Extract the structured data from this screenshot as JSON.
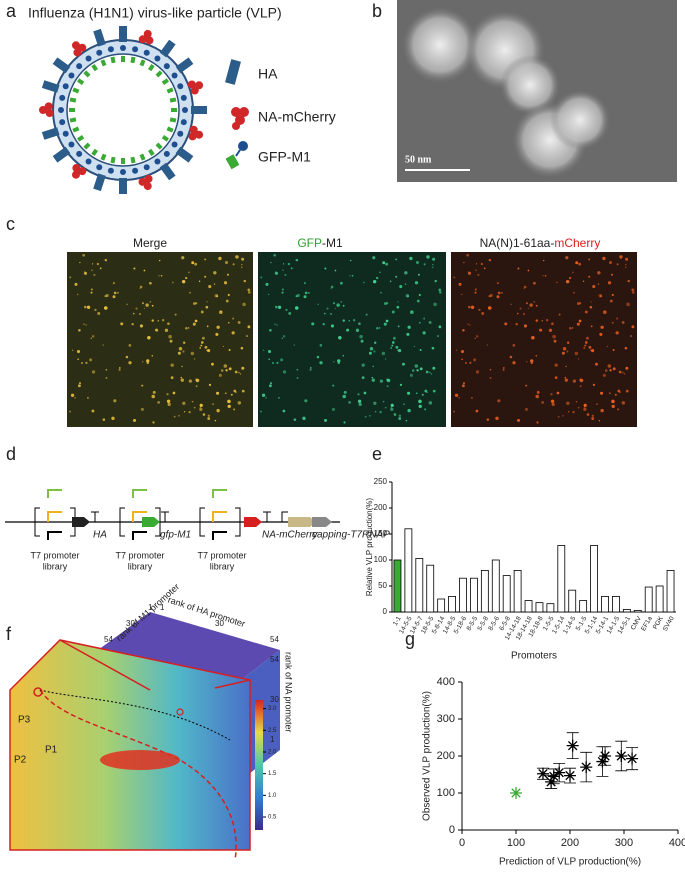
{
  "panel_labels": [
    "a",
    "b",
    "c",
    "d",
    "e",
    "f",
    "g"
  ],
  "a": {
    "title": "Influenza (H1N1) virus-like particle (VLP)",
    "legend": [
      "HA",
      "NA-mCherry",
      "GFP-M1"
    ]
  },
  "b": {
    "scale_bar": "50 nm"
  },
  "c": {
    "titles": [
      [
        "Merge"
      ],
      [
        "GFP",
        "-M1"
      ],
      [
        "NA(N)1-61aa-",
        "mCherry"
      ]
    ]
  },
  "d": {
    "genes": [
      "HA",
      "gfp-M1",
      "NA-mCherry",
      "capping-T7RNAP"
    ],
    "promoter_label": [
      "T7 promoter",
      "library"
    ]
  },
  "f": {
    "axes": [
      "rank of M1 promoter",
      "rank of HA promoter",
      "rank of NA promoter"
    ],
    "m1_ticks": [
      "54",
      "30",
      "1"
    ],
    "ha_ticks": [
      "1",
      "30",
      "54"
    ],
    "na_ticks": [
      "54",
      "30",
      "1"
    ],
    "colorbar_ticks": [
      0.5,
      {
        "value": 1,
        "label": "1.0"
      },
      1.5,
      {
        "value": 2,
        "label": "2.0"
      },
      2.5,
      {
        "value": 3,
        "label": "3.0"
      }
    ],
    "colorbar_lim": [
      0.2,
      3.2
    ],
    "points": [
      "P1",
      "P2",
      "P3"
    ]
  },
  "chart_data": [
    {
      "type": "bar",
      "ylabel": "Relative VLP production(%)",
      "xlabel": "Promoters",
      "categories": [
        "1-1",
        "14-5-5",
        "14-5-7",
        "18-5-5",
        "5-8-14",
        "14-8-5",
        "5-18-6",
        "8-5-5",
        "5-5-8",
        "8-5-6",
        "6-5-8",
        "14-14-18",
        "18-14-18",
        "18-18-8",
        "1-5-5",
        "1-5-14",
        "1-14-5",
        "5-1-5",
        "5-1-14",
        "5-14-1",
        "14-1-5",
        "14-5-1",
        "CMV",
        "EF1a",
        "PGK",
        "SV40"
      ],
      "values": [
        100,
        160,
        103,
        90,
        25,
        30,
        65,
        65,
        80,
        100,
        70,
        80,
        22,
        18,
        16,
        128,
        42,
        22,
        128,
        30,
        30,
        5,
        3,
        48,
        50,
        80
      ],
      "colors": [
        "#3aaa35",
        "#ffffff",
        "#ffffff",
        "#ffffff",
        "#ffffff",
        "#ffffff",
        "#ffffff",
        "#ffffff",
        "#ffffff",
        "#ffffff",
        "#ffffff",
        "#ffffff",
        "#ffffff",
        "#ffffff",
        "#ffffff",
        "#ffffff",
        "#ffffff",
        "#ffffff",
        "#ffffff",
        "#ffffff",
        "#ffffff",
        "#ffffff",
        "#ffffff",
        "#ffffff",
        "#ffffff",
        "#ffffff"
      ],
      "ylim": [
        0,
        250
      ],
      "yticks": [
        0,
        50,
        100,
        150,
        200,
        250
      ]
    },
    {
      "type": "scatter",
      "xlabel": "Prediction of VLP production(%)",
      "ylabel": "Observed  VLP production(%)",
      "series": [
        {
          "color": "#3aaa35",
          "x": [
            100
          ],
          "values": [
            100
          ],
          "errors": [
            0
          ]
        },
        {
          "color": "#000000",
          "x": [
            150,
            165,
            170,
            180,
            200,
            205,
            230,
            260,
            265,
            295,
            315
          ],
          "values": [
            152,
            130,
            145,
            155,
            147,
            228,
            170,
            185,
            200,
            200,
            193
          ],
          "errors": [
            15,
            18,
            20,
            25,
            20,
            35,
            40,
            40,
            25,
            40,
            30
          ]
        }
      ],
      "xlim": [
        0,
        400
      ],
      "xticks": [
        0,
        100,
        200,
        300,
        400
      ],
      "ylim": [
        0,
        400
      ],
      "yticks": [
        0,
        100,
        200,
        300,
        400
      ]
    }
  ]
}
